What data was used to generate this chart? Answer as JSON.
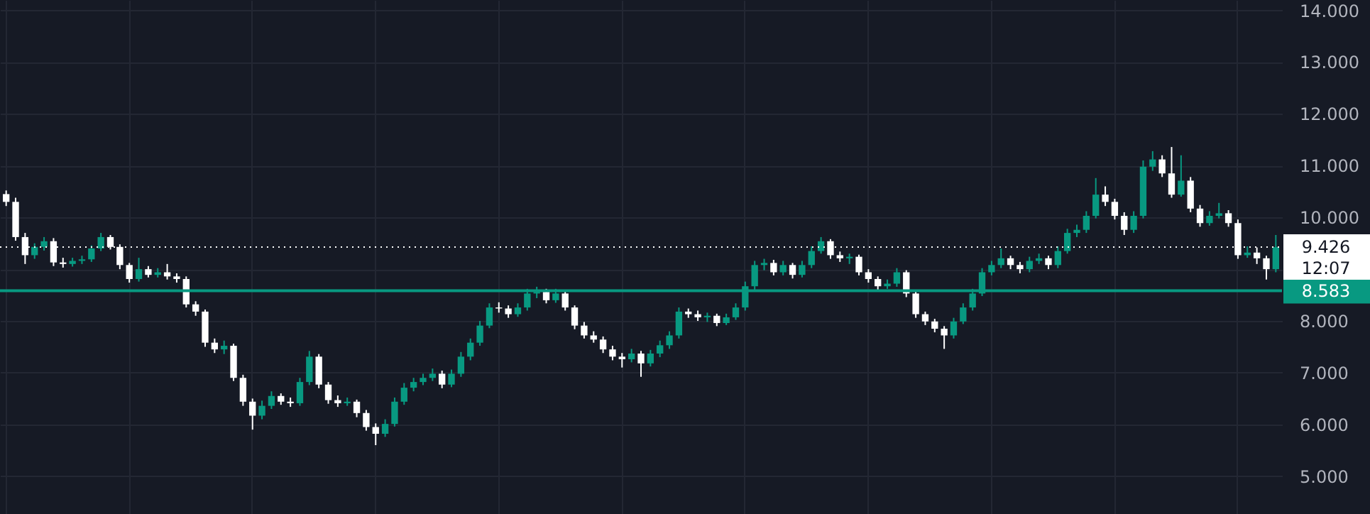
{
  "chart_data": {
    "type": "candlestick",
    "tick_labels": "y",
    "grid": true,
    "categories": [
      null,
      null,
      null,
      null,
      null,
      null,
      null,
      null,
      null,
      null,
      null,
      null,
      null,
      null,
      null,
      null,
      null,
      null,
      null,
      null,
      null,
      null,
      null,
      null,
      null,
      null,
      null,
      null,
      null,
      null,
      null,
      null,
      null,
      null,
      null,
      null,
      null,
      null,
      null,
      null,
      null,
      null,
      null,
      null,
      null,
      null,
      null,
      null,
      null,
      null,
      null,
      null,
      null,
      null,
      null,
      null,
      null,
      null,
      null,
      null,
      null,
      null,
      null,
      null,
      null,
      null,
      null,
      null,
      null,
      null,
      null,
      null,
      null,
      null,
      null,
      null,
      null,
      null,
      null,
      null,
      null,
      null,
      null,
      null,
      null,
      null,
      null,
      null,
      null,
      null,
      null,
      null,
      null,
      null,
      null,
      null,
      null,
      null,
      null,
      null,
      null,
      null,
      null,
      null,
      null,
      null,
      null,
      null,
      null,
      null,
      null,
      null,
      null,
      null,
      null,
      null,
      null,
      null,
      null,
      null,
      null,
      null,
      null,
      null,
      null,
      null,
      null,
      null,
      null,
      null,
      null,
      null,
      null,
      null,
      null
    ],
    "ohlc": [
      [
        10.45,
        10.52,
        10.22,
        10.3
      ],
      [
        10.3,
        10.38,
        9.55,
        9.62
      ],
      [
        9.62,
        9.7,
        9.1,
        9.27
      ],
      [
        9.27,
        9.5,
        9.2,
        9.43
      ],
      [
        9.43,
        9.62,
        9.36,
        9.54
      ],
      [
        9.54,
        9.6,
        9.06,
        9.13
      ],
      [
        9.13,
        9.22,
        9.03,
        9.1
      ],
      [
        9.1,
        9.22,
        9.05,
        9.16
      ],
      [
        9.16,
        9.26,
        9.1,
        9.19
      ],
      [
        9.19,
        9.46,
        9.14,
        9.4
      ],
      [
        9.4,
        9.7,
        9.35,
        9.62
      ],
      [
        9.62,
        9.66,
        9.38,
        9.43
      ],
      [
        9.43,
        9.48,
        9.0,
        9.08
      ],
      [
        9.08,
        9.12,
        8.74,
        8.81
      ],
      [
        8.81,
        9.22,
        8.76,
        9.0
      ],
      [
        9.0,
        9.06,
        8.84,
        8.89
      ],
      [
        8.89,
        9.02,
        8.84,
        8.94
      ],
      [
        8.94,
        9.1,
        8.8,
        8.86
      ],
      [
        8.86,
        8.92,
        8.74,
        8.81
      ],
      [
        8.81,
        8.86,
        8.26,
        8.32
      ],
      [
        8.32,
        8.38,
        8.1,
        8.18
      ],
      [
        8.18,
        8.22,
        7.5,
        7.58
      ],
      [
        7.58,
        7.66,
        7.38,
        7.45
      ],
      [
        7.45,
        7.62,
        7.36,
        7.52
      ],
      [
        7.52,
        7.56,
        6.84,
        6.9
      ],
      [
        6.9,
        6.96,
        6.36,
        6.44
      ],
      [
        6.44,
        6.5,
        5.9,
        6.17
      ],
      [
        6.17,
        6.46,
        6.1,
        6.36
      ],
      [
        6.36,
        6.64,
        6.3,
        6.55
      ],
      [
        6.55,
        6.6,
        6.38,
        6.44
      ],
      [
        6.44,
        6.52,
        6.34,
        6.41
      ],
      [
        6.41,
        6.9,
        6.36,
        6.82
      ],
      [
        6.82,
        7.42,
        6.76,
        7.31
      ],
      [
        7.31,
        7.36,
        6.7,
        6.77
      ],
      [
        6.77,
        6.82,
        6.4,
        6.47
      ],
      [
        6.47,
        6.56,
        6.34,
        6.41
      ],
      [
        6.41,
        6.52,
        6.36,
        6.44
      ],
      [
        6.44,
        6.48,
        6.14,
        6.22
      ],
      [
        6.22,
        6.28,
        5.88,
        5.95
      ],
      [
        5.95,
        6.02,
        5.6,
        5.82
      ],
      [
        5.82,
        6.1,
        5.76,
        6.01
      ],
      [
        6.01,
        6.52,
        5.96,
        6.44
      ],
      [
        6.44,
        6.8,
        6.38,
        6.71
      ],
      [
        6.71,
        6.9,
        6.64,
        6.82
      ],
      [
        6.82,
        6.98,
        6.76,
        6.9
      ],
      [
        6.9,
        7.08,
        6.84,
        6.98
      ],
      [
        6.98,
        7.04,
        6.7,
        6.77
      ],
      [
        6.77,
        7.06,
        6.72,
        6.98
      ],
      [
        6.98,
        7.4,
        6.92,
        7.31
      ],
      [
        7.31,
        7.66,
        7.24,
        7.58
      ],
      [
        7.58,
        8.0,
        7.52,
        7.91
      ],
      [
        7.91,
        8.34,
        7.86,
        8.26
      ],
      [
        8.26,
        8.36,
        8.16,
        8.24
      ],
      [
        8.24,
        8.3,
        8.06,
        8.13
      ],
      [
        8.13,
        8.34,
        8.08,
        8.26
      ],
      [
        8.26,
        8.62,
        8.2,
        8.53
      ],
      [
        8.53,
        8.66,
        8.44,
        8.56
      ],
      [
        8.56,
        8.62,
        8.34,
        8.4
      ],
      [
        8.4,
        8.62,
        8.35,
        8.53
      ],
      [
        8.53,
        8.58,
        8.2,
        8.26
      ],
      [
        8.26,
        8.3,
        7.84,
        7.91
      ],
      [
        7.91,
        7.98,
        7.66,
        7.72
      ],
      [
        7.72,
        7.8,
        7.58,
        7.64
      ],
      [
        7.64,
        7.7,
        7.38,
        7.45
      ],
      [
        7.45,
        7.52,
        7.24,
        7.31
      ],
      [
        7.31,
        7.38,
        7.1,
        7.26
      ],
      [
        7.26,
        7.46,
        7.2,
        7.37
      ],
      [
        7.37,
        7.42,
        6.92,
        7.18
      ],
      [
        7.18,
        7.44,
        7.12,
        7.37
      ],
      [
        7.37,
        7.62,
        7.3,
        7.53
      ],
      [
        7.53,
        7.8,
        7.46,
        7.72
      ],
      [
        7.72,
        8.26,
        7.66,
        8.18
      ],
      [
        8.18,
        8.24,
        8.06,
        8.13
      ],
      [
        8.13,
        8.2,
        8.0,
        8.07
      ],
      [
        8.07,
        8.16,
        7.98,
        8.1
      ],
      [
        8.1,
        8.14,
        7.9,
        7.96
      ],
      [
        7.96,
        8.14,
        7.92,
        8.07
      ],
      [
        8.07,
        8.34,
        8.02,
        8.26
      ],
      [
        8.26,
        8.76,
        8.2,
        8.67
      ],
      [
        8.67,
        9.16,
        8.6,
        9.08
      ],
      [
        9.08,
        9.2,
        8.98,
        9.12
      ],
      [
        9.12,
        9.18,
        8.88,
        8.94
      ],
      [
        8.94,
        9.16,
        8.88,
        9.08
      ],
      [
        9.08,
        9.12,
        8.82,
        8.89
      ],
      [
        8.89,
        9.16,
        8.84,
        9.08
      ],
      [
        9.08,
        9.44,
        9.02,
        9.35
      ],
      [
        9.35,
        9.62,
        9.3,
        9.54
      ],
      [
        9.54,
        9.58,
        9.2,
        9.27
      ],
      [
        9.27,
        9.34,
        9.14,
        9.21
      ],
      [
        9.21,
        9.3,
        9.1,
        9.24
      ],
      [
        9.24,
        9.28,
        8.88,
        8.94
      ],
      [
        8.94,
        9.0,
        8.74,
        8.81
      ],
      [
        8.81,
        8.86,
        8.6,
        8.67
      ],
      [
        8.67,
        8.8,
        8.62,
        8.72
      ],
      [
        8.72,
        9.02,
        8.66,
        8.94
      ],
      [
        8.94,
        8.98,
        8.46,
        8.53
      ],
      [
        8.53,
        8.58,
        8.06,
        8.13
      ],
      [
        8.13,
        8.18,
        7.92,
        7.99
      ],
      [
        7.99,
        8.04,
        7.78,
        7.85
      ],
      [
        7.85,
        7.9,
        7.46,
        7.72
      ],
      [
        7.72,
        8.06,
        7.66,
        7.99
      ],
      [
        7.99,
        8.34,
        7.94,
        8.26
      ],
      [
        8.26,
        8.62,
        8.2,
        8.53
      ],
      [
        8.53,
        9.02,
        8.48,
        8.94
      ],
      [
        8.94,
        9.16,
        8.88,
        9.08
      ],
      [
        9.08,
        9.4,
        9.02,
        9.21
      ],
      [
        9.21,
        9.26,
        9.0,
        9.08
      ],
      [
        9.08,
        9.14,
        8.92,
        9.0
      ],
      [
        9.0,
        9.24,
        8.94,
        9.16
      ],
      [
        9.16,
        9.3,
        9.1,
        9.21
      ],
      [
        9.21,
        9.26,
        9.0,
        9.08
      ],
      [
        9.08,
        9.44,
        9.02,
        9.35
      ],
      [
        9.35,
        9.78,
        9.3,
        9.7
      ],
      [
        9.7,
        9.86,
        9.62,
        9.76
      ],
      [
        9.76,
        10.12,
        9.7,
        10.03
      ],
      [
        10.03,
        10.76,
        9.98,
        10.44
      ],
      [
        10.44,
        10.6,
        10.22,
        10.3
      ],
      [
        10.3,
        10.36,
        9.96,
        10.03
      ],
      [
        10.03,
        10.1,
        9.66,
        9.76
      ],
      [
        9.76,
        10.12,
        9.7,
        10.03
      ],
      [
        10.03,
        11.1,
        9.98,
        10.98
      ],
      [
        10.98,
        11.28,
        10.9,
        11.12
      ],
      [
        11.12,
        11.2,
        10.78,
        10.85
      ],
      [
        10.85,
        11.36,
        10.38,
        10.44
      ],
      [
        10.44,
        11.2,
        10.4,
        10.71
      ],
      [
        10.71,
        10.78,
        10.1,
        10.17
      ],
      [
        10.17,
        10.24,
        9.82,
        9.89
      ],
      [
        9.89,
        10.12,
        9.84,
        10.03
      ],
      [
        10.03,
        10.28,
        9.98,
        10.08
      ],
      [
        10.08,
        10.14,
        9.82,
        9.89
      ],
      [
        9.89,
        9.96,
        9.2,
        9.27
      ],
      [
        9.27,
        9.44,
        9.22,
        9.32
      ],
      [
        9.32,
        9.42,
        9.1,
        9.21
      ],
      [
        9.21,
        9.26,
        8.8,
        9.0
      ],
      [
        9.0,
        9.66,
        8.94,
        9.426
      ]
    ],
    "colors": [
      "#ffffff",
      "#ffffff",
      "#ffffff",
      "#089981",
      "#089981",
      "#ffffff",
      "#ffffff",
      "#089981",
      "#089981",
      "#089981",
      "#089981",
      "#ffffff",
      "#ffffff",
      "#ffffff",
      "#089981",
      "#ffffff",
      "#089981",
      "#ffffff",
      "#ffffff",
      "#ffffff",
      "#ffffff",
      "#ffffff",
      "#ffffff",
      "#089981",
      "#ffffff",
      "#ffffff",
      "#ffffff",
      "#089981",
      "#089981",
      "#ffffff",
      "#ffffff",
      "#089981",
      "#089981",
      "#ffffff",
      "#ffffff",
      "#ffffff",
      "#089981",
      "#ffffff",
      "#ffffff",
      "#ffffff",
      "#089981",
      "#089981",
      "#089981",
      "#089981",
      "#089981",
      "#089981",
      "#ffffff",
      "#089981",
      "#089981",
      "#089981",
      "#089981",
      "#089981",
      "#ffffff",
      "#ffffff",
      "#089981",
      "#089981",
      "#089981",
      "#ffffff",
      "#089981",
      "#ffffff",
      "#ffffff",
      "#ffffff",
      "#ffffff",
      "#ffffff",
      "#ffffff",
      "#ffffff",
      "#089981",
      "#ffffff",
      "#089981",
      "#089981",
      "#089981",
      "#089981",
      "#ffffff",
      "#ffffff",
      "#089981",
      "#ffffff",
      "#089981",
      "#089981",
      "#089981",
      "#089981",
      "#089981",
      "#ffffff",
      "#089981",
      "#ffffff",
      "#089981",
      "#089981",
      "#089981",
      "#ffffff",
      "#ffffff",
      "#089981",
      "#ffffff",
      "#ffffff",
      "#ffffff",
      "#089981",
      "#089981",
      "#ffffff",
      "#ffffff",
      "#ffffff",
      "#ffffff",
      "#ffffff",
      "#089981",
      "#089981",
      "#089981",
      "#089981",
      "#089981",
      "#089981",
      "#ffffff",
      "#ffffff",
      "#089981",
      "#089981",
      "#ffffff",
      "#089981",
      "#089981",
      "#089981",
      "#089981",
      "#089981",
      "#ffffff",
      "#ffffff",
      "#ffffff",
      "#089981",
      "#089981",
      "#089981",
      "#ffffff",
      "#ffffff",
      "#089981",
      "#ffffff",
      "#ffffff",
      "#089981",
      "#089981",
      "#ffffff",
      "#ffffff",
      "#089981",
      "#ffffff",
      "#ffffff",
      "#089981"
    ],
    "ylim": [
      4.27,
      14.2
    ],
    "yticks": [
      {
        "value": 5,
        "label": "5.000"
      },
      {
        "value": 6,
        "label": "6.000"
      },
      {
        "value": 7,
        "label": "7.000"
      },
      {
        "value": 8,
        "label": "8.000"
      },
      {
        "value": 9,
        "label": null
      },
      {
        "value": 10,
        "label": "10.000"
      },
      {
        "value": 11,
        "label": "11.000"
      },
      {
        "value": 12,
        "label": "12.000"
      },
      {
        "value": 13,
        "label": "13.000"
      },
      {
        "value": 14,
        "label": "14.000"
      }
    ],
    "ref_lines": [
      {
        "axis": "y",
        "value": 9.426,
        "label": "9.426",
        "color": "#ffffff",
        "line_style": "dotted"
      },
      {
        "axis": "y",
        "value": 8.583,
        "label": "8.583",
        "color": "#089981",
        "line_style": "solid"
      }
    ],
    "annotations": [
      "12:07"
    ]
  }
}
